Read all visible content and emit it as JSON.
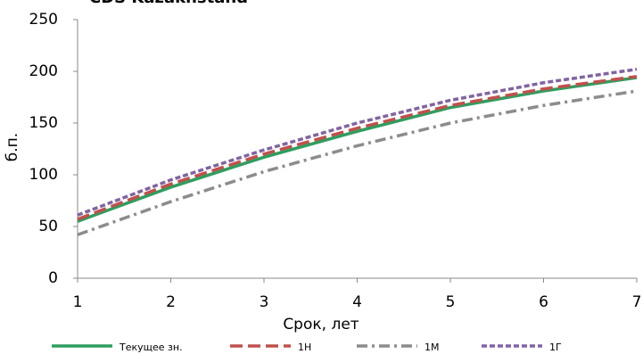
{
  "chart_data": {
    "type": "line",
    "title": "CDS Kazakhstand",
    "x_label": "Срок, лет",
    "y_label": "б.п.",
    "x": [
      1,
      2,
      3,
      4,
      5,
      6,
      7
    ],
    "series": [
      {
        "name": "Текущее зн.",
        "color": "#2e9e5e",
        "dash": "solid",
        "values": [
          55,
          88,
          117,
          142,
          165,
          181,
          194
        ]
      },
      {
        "name": "1Н",
        "color": "#c0504d",
        "dash": "dashed",
        "values": [
          57,
          91,
          120,
          145,
          167,
          183,
          195
        ]
      },
      {
        "name": "1М",
        "color": "#8c8c8c",
        "dash": "dashdot",
        "values": [
          42,
          74,
          103,
          128,
          150,
          167,
          181
        ]
      },
      {
        "name": "1Г",
        "color": "#8064a2",
        "dash": "dotted",
        "values": [
          61,
          95,
          124,
          150,
          172,
          189,
          202
        ]
      }
    ],
    "xlim": [
      1,
      7
    ],
    "xticks": [
      1,
      2,
      3,
      4,
      5,
      6,
      7
    ],
    "ylim": [
      0,
      250
    ],
    "yticks": [
      0,
      50,
      100,
      150,
      200,
      250
    ],
    "grid": false,
    "legend": "bottom"
  }
}
